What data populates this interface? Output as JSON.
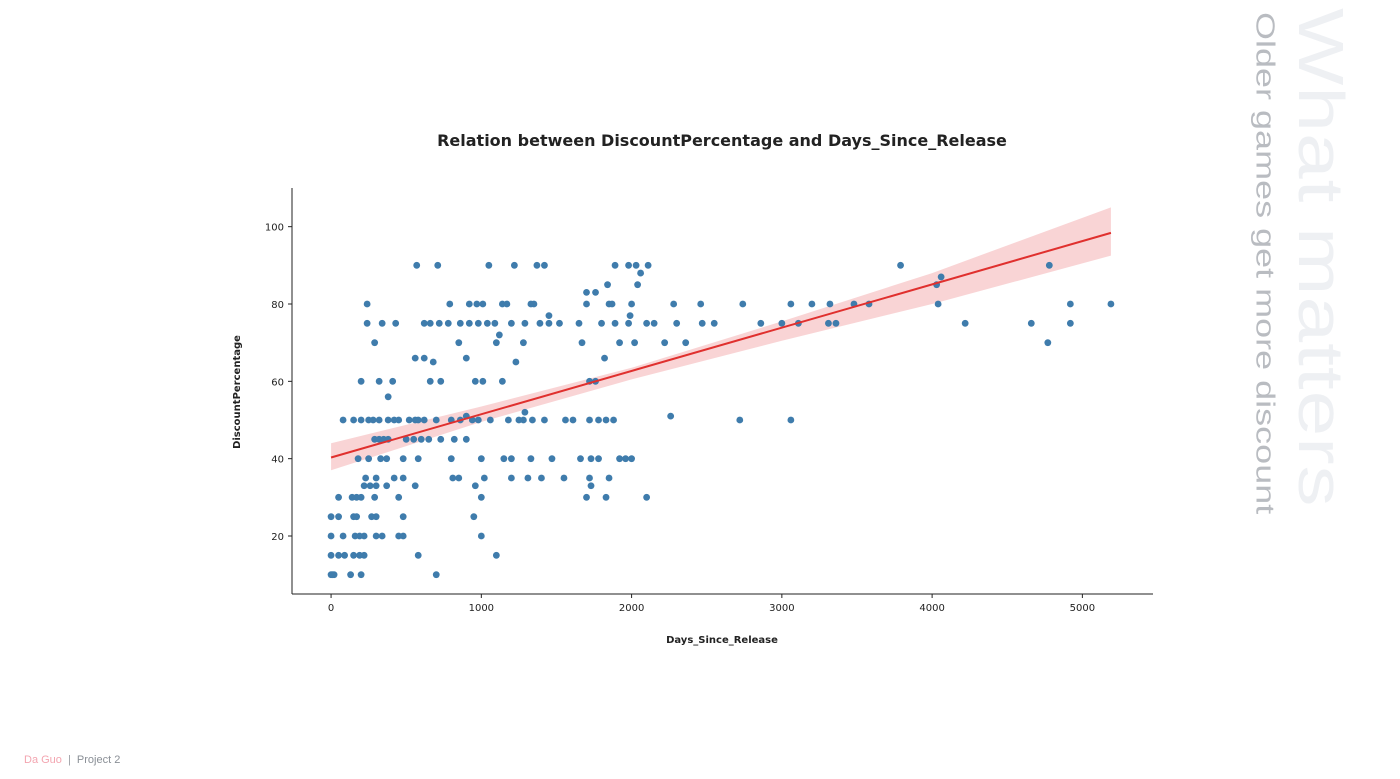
{
  "side": {
    "big_title": "What matters",
    "subtitle": "Older games get more discount"
  },
  "footer": {
    "author": "Da Guo",
    "separator": "|",
    "project": "Project 2"
  },
  "colors": {
    "points": "#3f7cac",
    "regression_line": "#e0302e",
    "confidence_band": "#f7c9cb"
  },
  "chart_data": {
    "type": "scatter",
    "title": "Relation between DiscountPercentage and Days_Since_Release",
    "xlabel": "Days_Since_Release",
    "ylabel": "DiscountPercentage",
    "xlim": [
      -260,
      5470
    ],
    "ylim": [
      5,
      110
    ],
    "xticks": [
      0,
      1000,
      2000,
      3000,
      4000,
      5000
    ],
    "yticks": [
      20,
      40,
      60,
      80,
      100
    ],
    "regression": {
      "x": [
        0,
        5190
      ],
      "y": [
        40.3,
        98.4
      ]
    },
    "confidence_band": {
      "x": [
        0,
        1000,
        2000,
        3000,
        4000,
        5190
      ],
      "upper": [
        44,
        53.5,
        63.5,
        75.5,
        88,
        105
      ],
      "lower": [
        37,
        49.5,
        60.5,
        70.5,
        80,
        92.5
      ]
    },
    "points": [
      [
        0,
        10
      ],
      [
        10,
        10
      ],
      [
        20,
        10
      ],
      [
        130,
        10
      ],
      [
        200,
        10
      ],
      [
        700,
        10
      ],
      [
        0,
        15
      ],
      [
        50,
        15
      ],
      [
        90,
        15
      ],
      [
        150,
        15
      ],
      [
        190,
        15
      ],
      [
        220,
        15
      ],
      [
        580,
        15
      ],
      [
        1100,
        15
      ],
      [
        0,
        20
      ],
      [
        80,
        20
      ],
      [
        160,
        20
      ],
      [
        190,
        20
      ],
      [
        220,
        20
      ],
      [
        300,
        20
      ],
      [
        340,
        20
      ],
      [
        450,
        20
      ],
      [
        480,
        20
      ],
      [
        1000,
        20
      ],
      [
        0,
        25
      ],
      [
        50,
        25
      ],
      [
        150,
        25
      ],
      [
        170,
        25
      ],
      [
        270,
        25
      ],
      [
        300,
        25
      ],
      [
        480,
        25
      ],
      [
        950,
        25
      ],
      [
        50,
        30
      ],
      [
        140,
        30
      ],
      [
        170,
        30
      ],
      [
        200,
        30
      ],
      [
        290,
        30
      ],
      [
        450,
        30
      ],
      [
        1000,
        30
      ],
      [
        1700,
        30
      ],
      [
        1830,
        30
      ],
      [
        2100,
        30
      ],
      [
        220,
        33
      ],
      [
        260,
        33
      ],
      [
        300,
        33
      ],
      [
        370,
        33
      ],
      [
        560,
        33
      ],
      [
        960,
        33
      ],
      [
        1730,
        33
      ],
      [
        230,
        35
      ],
      [
        300,
        35
      ],
      [
        420,
        35
      ],
      [
        480,
        35
      ],
      [
        810,
        35
      ],
      [
        850,
        35
      ],
      [
        1020,
        35
      ],
      [
        1200,
        35
      ],
      [
        1310,
        35
      ],
      [
        1400,
        35
      ],
      [
        1550,
        35
      ],
      [
        1720,
        35
      ],
      [
        1850,
        35
      ],
      [
        290,
        45
      ],
      [
        320,
        45
      ],
      [
        350,
        45
      ],
      [
        380,
        45
      ],
      [
        500,
        45
      ],
      [
        550,
        45
      ],
      [
        600,
        45
      ],
      [
        650,
        45
      ],
      [
        730,
        45
      ],
      [
        820,
        45
      ],
      [
        900,
        45
      ],
      [
        180,
        40
      ],
      [
        250,
        40
      ],
      [
        330,
        40
      ],
      [
        370,
        40
      ],
      [
        480,
        40
      ],
      [
        580,
        40
      ],
      [
        800,
        40
      ],
      [
        1000,
        40
      ],
      [
        1150,
        40
      ],
      [
        1200,
        40
      ],
      [
        1330,
        40
      ],
      [
        1470,
        40
      ],
      [
        1660,
        40
      ],
      [
        1730,
        40
      ],
      [
        1780,
        40
      ],
      [
        1920,
        40
      ],
      [
        1960,
        40
      ],
      [
        2000,
        40
      ],
      [
        80,
        50
      ],
      [
        150,
        50
      ],
      [
        200,
        50
      ],
      [
        250,
        50
      ],
      [
        280,
        50
      ],
      [
        320,
        50
      ],
      [
        380,
        50
      ],
      [
        420,
        50
      ],
      [
        450,
        50
      ],
      [
        520,
        50
      ],
      [
        560,
        50
      ],
      [
        580,
        50
      ],
      [
        620,
        50
      ],
      [
        700,
        50
      ],
      [
        800,
        50
      ],
      [
        860,
        50
      ],
      [
        940,
        50
      ],
      [
        980,
        50
      ],
      [
        1060,
        50
      ],
      [
        1180,
        50
      ],
      [
        1250,
        50
      ],
      [
        1280,
        50
      ],
      [
        1340,
        50
      ],
      [
        1420,
        50
      ],
      [
        1560,
        50
      ],
      [
        1610,
        50
      ],
      [
        1720,
        50
      ],
      [
        1780,
        50
      ],
      [
        1830,
        50
      ],
      [
        1880,
        50
      ],
      [
        2720,
        50
      ],
      [
        3060,
        50
      ],
      [
        900,
        51
      ],
      [
        1290,
        52
      ],
      [
        2260,
        51
      ],
      [
        380,
        56
      ],
      [
        200,
        60
      ],
      [
        320,
        60
      ],
      [
        410,
        60
      ],
      [
        660,
        60
      ],
      [
        730,
        60
      ],
      [
        960,
        60
      ],
      [
        1010,
        60
      ],
      [
        1140,
        60
      ],
      [
        1720,
        60
      ],
      [
        1760,
        60
      ],
      [
        560,
        66
      ],
      [
        620,
        66
      ],
      [
        680,
        65
      ],
      [
        900,
        66
      ],
      [
        1230,
        65
      ],
      [
        1820,
        66
      ],
      [
        290,
        70
      ],
      [
        850,
        70
      ],
      [
        1100,
        70
      ],
      [
        1280,
        70
      ],
      [
        1670,
        70
      ],
      [
        1920,
        70
      ],
      [
        2020,
        70
      ],
      [
        2220,
        70
      ],
      [
        2360,
        70
      ],
      [
        4770,
        70
      ],
      [
        1120,
        72
      ],
      [
        240,
        75
      ],
      [
        340,
        75
      ],
      [
        430,
        75
      ],
      [
        620,
        75
      ],
      [
        660,
        75
      ],
      [
        720,
        75
      ],
      [
        780,
        75
      ],
      [
        860,
        75
      ],
      [
        920,
        75
      ],
      [
        980,
        75
      ],
      [
        1040,
        75
      ],
      [
        1090,
        75
      ],
      [
        1200,
        75
      ],
      [
        1290,
        75
      ],
      [
        1390,
        75
      ],
      [
        1450,
        75
      ],
      [
        1520,
        75
      ],
      [
        1650,
        75
      ],
      [
        1800,
        75
      ],
      [
        1890,
        75
      ],
      [
        1980,
        75
      ],
      [
        2100,
        75
      ],
      [
        2150,
        75
      ],
      [
        2300,
        75
      ],
      [
        2470,
        75
      ],
      [
        2550,
        75
      ],
      [
        2860,
        75
      ],
      [
        3000,
        75
      ],
      [
        3110,
        75
      ],
      [
        3310,
        75
      ],
      [
        3360,
        75
      ],
      [
        4220,
        75
      ],
      [
        4660,
        75
      ],
      [
        4920,
        75
      ],
      [
        1450,
        77
      ],
      [
        1990,
        77
      ],
      [
        240,
        80
      ],
      [
        790,
        80
      ],
      [
        920,
        80
      ],
      [
        970,
        80
      ],
      [
        1010,
        80
      ],
      [
        1140,
        80
      ],
      [
        1170,
        80
      ],
      [
        1330,
        80
      ],
      [
        1350,
        80
      ],
      [
        1700,
        80
      ],
      [
        1850,
        80
      ],
      [
        1870,
        80
      ],
      [
        2000,
        80
      ],
      [
        2280,
        80
      ],
      [
        2460,
        80
      ],
      [
        2740,
        80
      ],
      [
        3060,
        80
      ],
      [
        3200,
        80
      ],
      [
        3320,
        80
      ],
      [
        3480,
        80
      ],
      [
        3580,
        80
      ],
      [
        4040,
        80
      ],
      [
        4920,
        80
      ],
      [
        5190,
        80
      ],
      [
        1700,
        83
      ],
      [
        1760,
        83
      ],
      [
        1840,
        85
      ],
      [
        2040,
        85
      ],
      [
        4030,
        85
      ],
      [
        2060,
        88
      ],
      [
        4060,
        87
      ],
      [
        570,
        90
      ],
      [
        710,
        90
      ],
      [
        1050,
        90
      ],
      [
        1220,
        90
      ],
      [
        1370,
        90
      ],
      [
        1420,
        90
      ],
      [
        1890,
        90
      ],
      [
        1980,
        90
      ],
      [
        2030,
        90
      ],
      [
        2110,
        90
      ],
      [
        3790,
        90
      ],
      [
        4780,
        90
      ]
    ]
  }
}
